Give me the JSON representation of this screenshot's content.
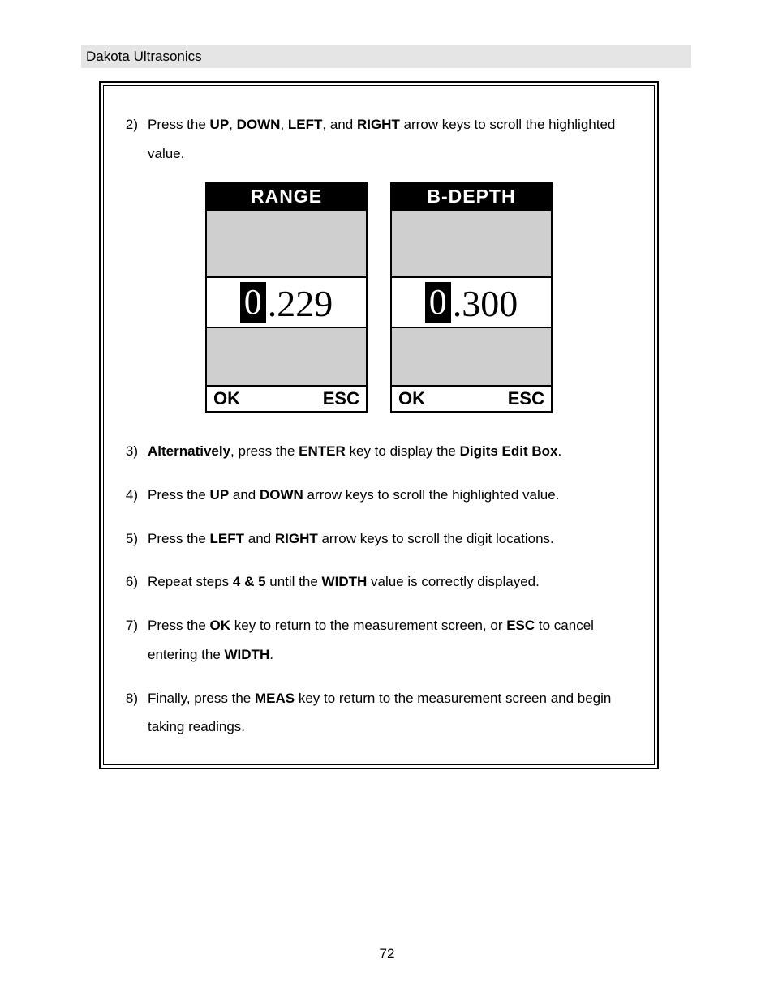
{
  "header": {
    "title": "Dakota Ultrasonics"
  },
  "steps": {
    "s2": {
      "num": "2)",
      "parts": [
        {
          "t": "Press the ",
          "b": false
        },
        {
          "t": "UP",
          "b": true
        },
        {
          "t": ", ",
          "b": false
        },
        {
          "t": "DOWN",
          "b": true
        },
        {
          "t": ", ",
          "b": false
        },
        {
          "t": "LEFT",
          "b": true
        },
        {
          "t": ", and ",
          "b": false
        },
        {
          "t": "RIGHT",
          "b": true
        },
        {
          "t": " arrow keys to scroll the highlighted value.",
          "b": false
        }
      ]
    },
    "s3": {
      "num": "3)",
      "parts": [
        {
          "t": "Alternatively",
          "b": true
        },
        {
          "t": ", press the ",
          "b": false
        },
        {
          "t": "ENTER",
          "b": true
        },
        {
          "t": " key to display the ",
          "b": false
        },
        {
          "t": "Digits Edit Box",
          "b": true
        },
        {
          "t": ".",
          "b": false
        }
      ]
    },
    "s4": {
      "num": "4)",
      "parts": [
        {
          "t": "Press the ",
          "b": false
        },
        {
          "t": "UP",
          "b": true
        },
        {
          "t": " and ",
          "b": false
        },
        {
          "t": "DOWN",
          "b": true
        },
        {
          "t": " arrow keys to scroll the highlighted value.",
          "b": false
        }
      ]
    },
    "s5": {
      "num": "5)",
      "parts": [
        {
          "t": "Press the ",
          "b": false
        },
        {
          "t": "LEFT",
          "b": true
        },
        {
          "t": " and ",
          "b": false
        },
        {
          "t": "RIGHT",
          "b": true
        },
        {
          "t": " arrow keys to scroll the digit locations.",
          "b": false
        }
      ]
    },
    "s6": {
      "num": "6)",
      "parts": [
        {
          "t": "Repeat steps ",
          "b": false
        },
        {
          "t": "4 & 5",
          "b": true
        },
        {
          "t": " until the ",
          "b": false
        },
        {
          "t": "WIDTH",
          "b": true
        },
        {
          "t": " value is correctly displayed.",
          "b": false
        }
      ]
    },
    "s7": {
      "num": "7)",
      "parts": [
        {
          "t": "Press the ",
          "b": false
        },
        {
          "t": "OK",
          "b": true
        },
        {
          "t": " key to return to the measurement screen, or ",
          "b": false
        },
        {
          "t": "ESC",
          "b": true
        },
        {
          "t": " to cancel entering the ",
          "b": false
        },
        {
          "t": "WIDTH",
          "b": true
        },
        {
          "t": ".",
          "b": false
        }
      ]
    },
    "s8": {
      "num": "8)",
      "parts": [
        {
          "t": "Finally, press the ",
          "b": false
        },
        {
          "t": "MEAS",
          "b": true
        },
        {
          "t": " key to return to the measurement screen and begin taking readings.",
          "b": false
        }
      ]
    }
  },
  "lcd": {
    "left": {
      "title": "RANGE",
      "highlight_digit": "0",
      "rest": ".229",
      "ok": "OK",
      "esc": "ESC"
    },
    "right": {
      "title": "B-DEPTH",
      "highlight_digit": "0",
      "rest": ".300",
      "ok": "OK",
      "esc": "ESC"
    }
  },
  "page_number": "72",
  "colors": {
    "header_bg": "#e5e5e5",
    "lcd_gray": "#cfcfcf",
    "black": "#000000",
    "white": "#ffffff"
  }
}
